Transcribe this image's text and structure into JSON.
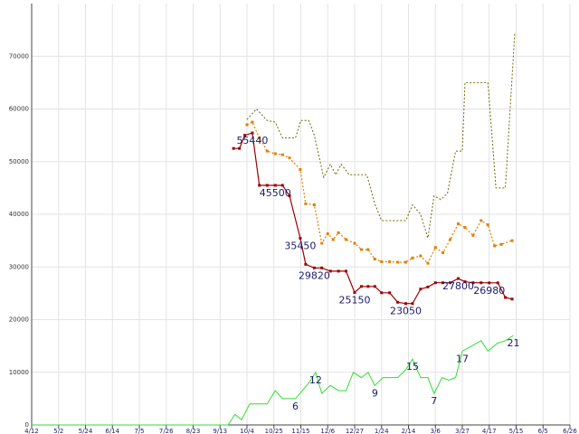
{
  "chart_data": {
    "type": "line",
    "title": "",
    "xlabel": "",
    "ylabel": "",
    "ylim": [
      0,
      80000
    ],
    "yticks": [
      0,
      10000,
      20000,
      30000,
      40000,
      50000,
      60000,
      70000
    ],
    "xticks": [
      "4/12",
      "5/2",
      "5/24",
      "6/14",
      "7/5",
      "7/26",
      "8/23",
      "9/13",
      "10/4",
      "10/25",
      "11/15",
      "12/6",
      "12/27",
      "1/24",
      "2/14",
      "3/6",
      "3/27",
      "4/17",
      "5/15",
      "6/5",
      "6/26"
    ],
    "grid": true,
    "legend": "none",
    "colors": {
      "s1": "#9b0000",
      "s2": "#e08000",
      "s3": "#6b6b00",
      "s4": "#33dd33"
    },
    "series": [
      {
        "values": [
          {
            "x": 7.5,
            "y": 52500
          },
          {
            "x": 7.72,
            "y": 52500
          },
          {
            "x": 7.92,
            "y": 55000
          },
          {
            "x": 8.2,
            "y": 55440
          },
          {
            "x": 8.46,
            "y": 45500
          },
          {
            "x": 8.75,
            "y": 45500
          },
          {
            "x": 9.05,
            "y": 45500
          },
          {
            "x": 9.32,
            "y": 45500
          },
          {
            "x": 9.58,
            "y": 43500
          },
          {
            "x": 9.98,
            "y": 35450
          },
          {
            "x": 10.18,
            "y": 30500
          },
          {
            "x": 10.5,
            "y": 29820
          },
          {
            "x": 10.78,
            "y": 29820
          },
          {
            "x": 11.1,
            "y": 29200
          },
          {
            "x": 11.4,
            "y": 29200
          },
          {
            "x": 11.68,
            "y": 29200
          },
          {
            "x": 12.0,
            "y": 25150
          },
          {
            "x": 12.25,
            "y": 26300
          },
          {
            "x": 12.5,
            "y": 26300
          },
          {
            "x": 12.75,
            "y": 26300
          },
          {
            "x": 13.0,
            "y": 25100
          },
          {
            "x": 13.3,
            "y": 25100
          },
          {
            "x": 13.6,
            "y": 23300
          },
          {
            "x": 13.9,
            "y": 23050
          },
          {
            "x": 14.15,
            "y": 23050
          },
          {
            "x": 14.45,
            "y": 25800
          },
          {
            "x": 14.72,
            "y": 26200
          },
          {
            "x": 15.0,
            "y": 27000
          },
          {
            "x": 15.28,
            "y": 27000
          },
          {
            "x": 15.55,
            "y": 27000
          },
          {
            "x": 15.85,
            "y": 27800
          },
          {
            "x": 16.1,
            "y": 27200
          },
          {
            "x": 16.4,
            "y": 27000
          },
          {
            "x": 16.7,
            "y": 27000
          },
          {
            "x": 17.0,
            "y": 26980
          },
          {
            "x": 17.32,
            "y": 26980
          },
          {
            "x": 17.6,
            "y": 24200
          },
          {
            "x": 17.85,
            "y": 23900
          }
        ],
        "labels": [
          {
            "x": 8.2,
            "y": 55440,
            "text": "55440"
          },
          {
            "x": 9.05,
            "y": 45500,
            "text": "45500"
          },
          {
            "x": 9.98,
            "y": 35450,
            "text": "35450"
          },
          {
            "x": 10.5,
            "y": 29820,
            "text": "29820"
          },
          {
            "x": 12.0,
            "y": 25150,
            "text": "25150"
          },
          {
            "x": 13.9,
            "y": 23050,
            "text": "23050"
          },
          {
            "x": 15.85,
            "y": 27800,
            "text": "27800"
          },
          {
            "x": 17.0,
            "y": 26980,
            "text": "26980"
          }
        ]
      },
      {
        "values": [
          {
            "x": 8.0,
            "y": 57000
          },
          {
            "x": 8.2,
            "y": 57500
          },
          {
            "x": 8.46,
            "y": 54500
          },
          {
            "x": 8.75,
            "y": 52000
          },
          {
            "x": 9.05,
            "y": 51500
          },
          {
            "x": 9.32,
            "y": 51300
          },
          {
            "x": 9.58,
            "y": 50700
          },
          {
            "x": 9.98,
            "y": 48500
          },
          {
            "x": 10.18,
            "y": 42000
          },
          {
            "x": 10.5,
            "y": 41800
          },
          {
            "x": 10.78,
            "y": 34500
          },
          {
            "x": 11.0,
            "y": 36300
          },
          {
            "x": 11.2,
            "y": 35200
          },
          {
            "x": 11.4,
            "y": 36500
          },
          {
            "x": 11.68,
            "y": 35200
          },
          {
            "x": 12.0,
            "y": 34500
          },
          {
            "x": 12.25,
            "y": 33300
          },
          {
            "x": 12.5,
            "y": 33300
          },
          {
            "x": 12.75,
            "y": 31500
          },
          {
            "x": 13.0,
            "y": 31000
          },
          {
            "x": 13.3,
            "y": 31000
          },
          {
            "x": 13.6,
            "y": 30900
          },
          {
            "x": 13.9,
            "y": 30900
          },
          {
            "x": 14.15,
            "y": 31700
          },
          {
            "x": 14.45,
            "y": 32100
          },
          {
            "x": 14.72,
            "y": 30700
          },
          {
            "x": 15.0,
            "y": 33700
          },
          {
            "x": 15.28,
            "y": 32700
          },
          {
            "x": 15.55,
            "y": 35200
          },
          {
            "x": 15.85,
            "y": 38200
          },
          {
            "x": 16.1,
            "y": 37500
          },
          {
            "x": 16.4,
            "y": 36000
          },
          {
            "x": 16.7,
            "y": 38800
          },
          {
            "x": 16.95,
            "y": 38000
          },
          {
            "x": 17.2,
            "y": 34000
          },
          {
            "x": 17.45,
            "y": 34300
          },
          {
            "x": 17.85,
            "y": 35000
          }
        ]
      },
      {
        "values": [
          {
            "x": 8.0,
            "y": 58000
          },
          {
            "x": 8.35,
            "y": 60000
          },
          {
            "x": 8.75,
            "y": 57800
          },
          {
            "x": 9.05,
            "y": 57500
          },
          {
            "x": 9.32,
            "y": 54500
          },
          {
            "x": 9.58,
            "y": 54500
          },
          {
            "x": 9.8,
            "y": 54500
          },
          {
            "x": 10.0,
            "y": 57800
          },
          {
            "x": 10.3,
            "y": 57800
          },
          {
            "x": 10.5,
            "y": 55000
          },
          {
            "x": 10.85,
            "y": 47000
          },
          {
            "x": 11.1,
            "y": 49500
          },
          {
            "x": 11.3,
            "y": 47500
          },
          {
            "x": 11.5,
            "y": 49500
          },
          {
            "x": 11.8,
            "y": 47500
          },
          {
            "x": 12.2,
            "y": 47500
          },
          {
            "x": 12.45,
            "y": 47500
          },
          {
            "x": 12.75,
            "y": 42000
          },
          {
            "x": 13.0,
            "y": 38800
          },
          {
            "x": 13.3,
            "y": 38800
          },
          {
            "x": 13.6,
            "y": 38800
          },
          {
            "x": 13.9,
            "y": 38800
          },
          {
            "x": 14.15,
            "y": 41800
          },
          {
            "x": 14.45,
            "y": 40000
          },
          {
            "x": 14.72,
            "y": 35500
          },
          {
            "x": 14.95,
            "y": 43500
          },
          {
            "x": 15.2,
            "y": 42800
          },
          {
            "x": 15.45,
            "y": 44000
          },
          {
            "x": 15.75,
            "y": 52000
          },
          {
            "x": 16.0,
            "y": 52000
          },
          {
            "x": 16.1,
            "y": 65000
          },
          {
            "x": 16.4,
            "y": 65000
          },
          {
            "x": 16.7,
            "y": 65000
          },
          {
            "x": 16.95,
            "y": 65000
          },
          {
            "x": 17.25,
            "y": 45000
          },
          {
            "x": 17.6,
            "y": 45000
          },
          {
            "x": 17.95,
            "y": 74500
          }
        ]
      },
      {
        "values": [
          {
            "x": 0.0,
            "y": 0
          },
          {
            "x": 7.3,
            "y": 0
          },
          {
            "x": 7.55,
            "y": 2000
          },
          {
            "x": 7.8,
            "y": 1000
          },
          {
            "x": 8.1,
            "y": 4000
          },
          {
            "x": 8.45,
            "y": 4000
          },
          {
            "x": 8.75,
            "y": 4000
          },
          {
            "x": 9.05,
            "y": 6500
          },
          {
            "x": 9.32,
            "y": 5000
          },
          {
            "x": 9.58,
            "y": 5000
          },
          {
            "x": 9.8,
            "y": 5000
          },
          {
            "x": 10.0,
            "y": 6200
          },
          {
            "x": 10.3,
            "y": 8000
          },
          {
            "x": 10.55,
            "y": 10000
          },
          {
            "x": 10.78,
            "y": 6000
          },
          {
            "x": 11.1,
            "y": 7500
          },
          {
            "x": 11.4,
            "y": 6500
          },
          {
            "x": 11.68,
            "y": 6500
          },
          {
            "x": 11.95,
            "y": 10000
          },
          {
            "x": 12.25,
            "y": 9000
          },
          {
            "x": 12.5,
            "y": 10000
          },
          {
            "x": 12.75,
            "y": 7500
          },
          {
            "x": 13.05,
            "y": 9000
          },
          {
            "x": 13.35,
            "y": 9000
          },
          {
            "x": 13.6,
            "y": 9000
          },
          {
            "x": 13.9,
            "y": 10500
          },
          {
            "x": 14.15,
            "y": 12500
          },
          {
            "x": 14.45,
            "y": 9000
          },
          {
            "x": 14.72,
            "y": 9000
          },
          {
            "x": 14.95,
            "y": 6000
          },
          {
            "x": 15.25,
            "y": 9000
          },
          {
            "x": 15.5,
            "y": 8500
          },
          {
            "x": 15.75,
            "y": 9000
          },
          {
            "x": 16.0,
            "y": 14000
          },
          {
            "x": 16.35,
            "y": 15000
          },
          {
            "x": 16.7,
            "y": 16000
          },
          {
            "x": 16.95,
            "y": 14000
          },
          {
            "x": 17.3,
            "y": 15500
          },
          {
            "x": 17.6,
            "y": 16000
          },
          {
            "x": 17.9,
            "y": 17000
          }
        ],
        "labels": [
          {
            "x": 9.8,
            "y": 5000,
            "text": "6"
          },
          {
            "x": 10.55,
            "y": 10000,
            "text": "12"
          },
          {
            "x": 12.75,
            "y": 7500,
            "text": "9"
          },
          {
            "x": 14.15,
            "y": 12500,
            "text": "15"
          },
          {
            "x": 14.95,
            "y": 6000,
            "text": "7"
          },
          {
            "x": 16.0,
            "y": 14000,
            "text": "17"
          },
          {
            "x": 17.9,
            "y": 17000,
            "text": "21"
          }
        ]
      }
    ]
  }
}
